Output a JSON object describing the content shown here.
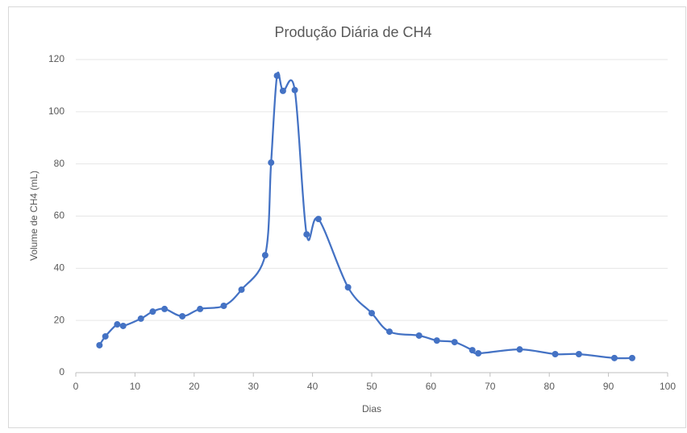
{
  "chart_data": {
    "type": "line",
    "title": "Produção Diária de CH4",
    "x_label": "Dias",
    "y_label": "Volume de CH4  (mL)",
    "x": [
      4,
      5,
      7,
      8,
      11,
      13,
      15,
      18,
      21,
      25,
      28,
      32,
      33,
      34,
      35,
      37,
      39,
      41,
      46,
      50,
      53,
      58,
      61,
      64,
      67,
      68,
      75,
      81,
      85,
      91,
      94
    ],
    "series": [
      {
        "name": "CH4",
        "color": "#4472c4",
        "values": [
          10.5,
          13.9,
          18.5,
          17.9,
          20.7,
          23.4,
          24.4,
          21.6,
          24.4,
          25.6,
          31.8,
          45,
          80.5,
          113.8,
          108,
          108.3,
          53,
          58.9,
          32.7,
          22.8,
          15.7,
          14.2,
          12.3,
          11.7,
          8.6,
          7.4,
          8.9,
          7.1,
          7.1,
          5.6,
          5.6
        ]
      }
    ],
    "xlim": [
      0,
      100
    ],
    "xticks": [
      0,
      10,
      20,
      30,
      40,
      50,
      60,
      70,
      80,
      90,
      100
    ],
    "ylim": [
      0,
      120
    ],
    "yticks": [
      0,
      20,
      40,
      60,
      80,
      100,
      120
    ],
    "grid": true
  }
}
